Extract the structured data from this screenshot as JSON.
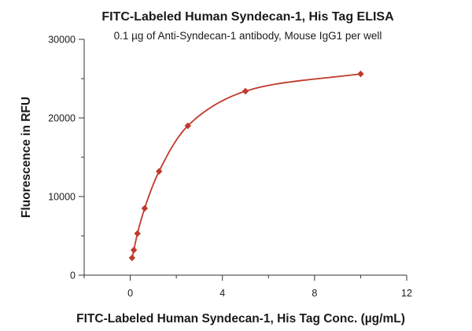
{
  "chart_data": {
    "type": "scatter",
    "title": "FITC-Labeled Human Syndecan-1, His Tag ELISA",
    "subtitle": "0.1 µg of Anti-Syndecan-1 antibody, Mouse IgG1 per well",
    "xlabel": "FITC-Labeled Human Syndecan-1, His Tag Conc. (µg/mL)",
    "ylabel": "Fluorescence in RFU",
    "xlim": [
      -2,
      12
    ],
    "ylim": [
      0,
      30000
    ],
    "x_ticks": [
      0,
      4,
      8,
      12
    ],
    "y_ticks": [
      0,
      10000,
      20000,
      30000
    ],
    "x_minor_ticks": [
      -2,
      2,
      6,
      10
    ],
    "y_minor_ticks": [
      5000,
      15000,
      25000
    ],
    "grid": false,
    "legend": "none",
    "series": [
      {
        "color": "#c0392b",
        "marker": "diamond",
        "fit": "saturation curve",
        "x": [
          0.078,
          0.156,
          0.3125,
          0.625,
          1.25,
          2.5,
          5,
          10
        ],
        "y": [
          2200,
          3200,
          5300,
          8500,
          13200,
          19000,
          23400,
          25600
        ]
      }
    ]
  }
}
